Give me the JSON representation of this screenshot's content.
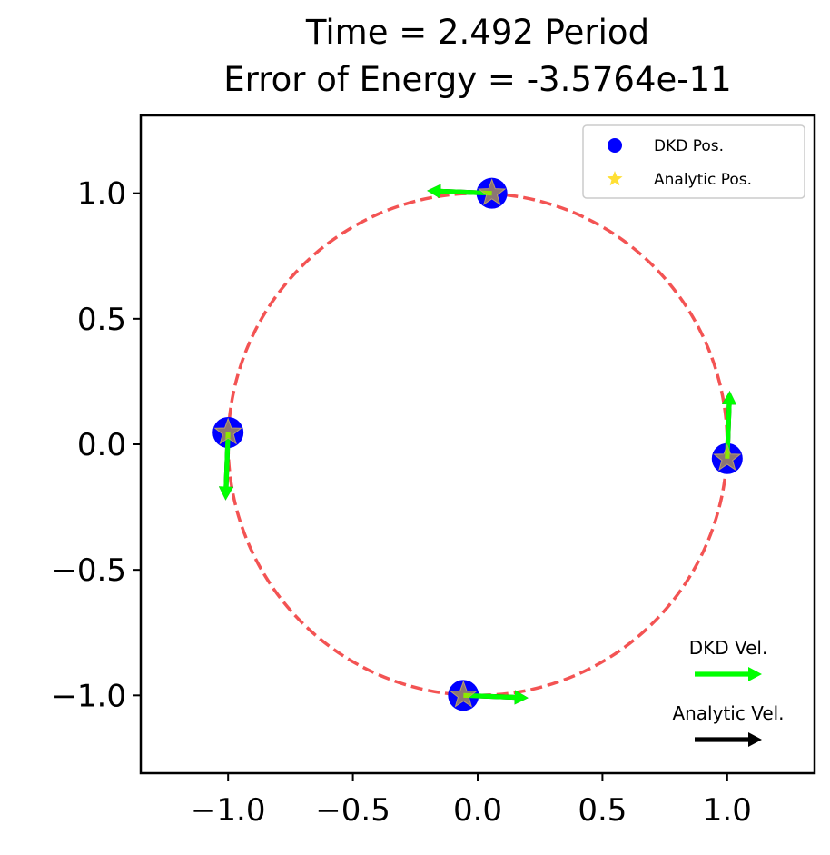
{
  "chart_data": {
    "type": "scatter",
    "title": [
      "Time = 2.492 Period",
      "Error of Energy = -3.5764e-11"
    ],
    "xlabel": "",
    "ylabel": "",
    "xlim": [
      -1.35,
      1.35
    ],
    "ylim": [
      -1.31,
      1.31
    ],
    "xticks": [
      -1.0,
      -0.5,
      0.0,
      0.5,
      1.0
    ],
    "yticks": [
      -1.0,
      -0.5,
      0.0,
      0.5,
      1.0
    ],
    "xtick_labels": [
      "−1.0",
      "−0.5",
      "0.0",
      "0.5",
      "1.0"
    ],
    "ytick_labels": [
      "−1.0",
      "−0.5",
      "0.0",
      "0.5",
      "1.0"
    ],
    "grid": false,
    "legend_position": "top-right",
    "orbit": {
      "center": [
        0,
        0
      ],
      "radius": 1.0,
      "style": "dashed",
      "color": "#f24a4a"
    },
    "series": [
      {
        "name": "DKD Pos.",
        "marker": "circle",
        "color": "#0000ff",
        "points": [
          [
            0.057,
            1.0
          ],
          [
            1.0,
            -0.057
          ],
          [
            -0.057,
            -1.0
          ],
          [
            -1.0,
            0.047
          ]
        ]
      },
      {
        "name": "Analytic Pos.",
        "marker": "star",
        "color": "#ffd700",
        "points": [
          [
            0.057,
            1.0
          ],
          [
            1.0,
            -0.057
          ],
          [
            -0.057,
            -1.0
          ],
          [
            -1.0,
            0.047
          ]
        ]
      }
    ],
    "velocities": {
      "dkd": {
        "name": "DKD Vel.",
        "color": "#00ff00",
        "vectors": [
          [
            -0.26,
            0.01
          ],
          [
            0.01,
            0.27
          ],
          [
            0.26,
            -0.01
          ],
          [
            -0.01,
            -0.27
          ]
        ]
      },
      "analytic": {
        "name": "Analytic Vel.",
        "color": "#000000",
        "vectors": [
          [
            -0.26,
            0.01
          ],
          [
            0.01,
            0.27
          ],
          [
            0.26,
            -0.01
          ],
          [
            -0.01,
            -0.27
          ]
        ]
      }
    }
  }
}
